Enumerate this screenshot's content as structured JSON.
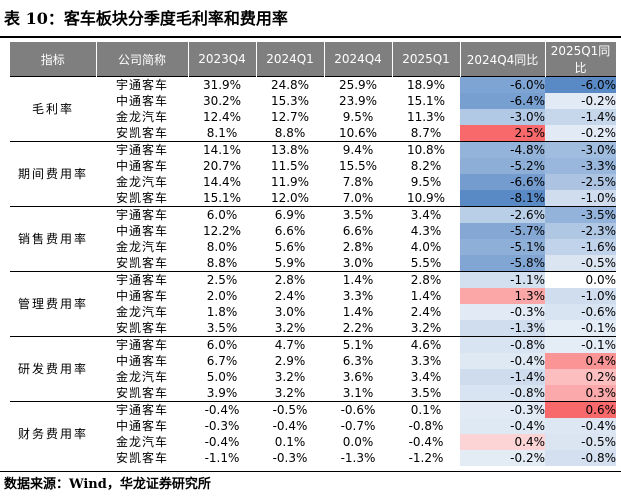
{
  "title": "表 10：客车板块分季度毛利率和费用率",
  "headers": [
    "指标",
    "公司简称",
    "2023Q4",
    "2024Q1",
    "2024Q4",
    "2025Q1",
    "2024Q4同比",
    "2025Q1同比"
  ],
  "groups": [
    {
      "label": "毛利率",
      "rows": [
        {
          "company": "宇通客车",
          "values": [
            "31.9%",
            "24.8%",
            "25.9%",
            "18.9%"
          ],
          "yoy": [
            "-6.0%",
            "-6.0%"
          ]
        },
        {
          "company": "中通客车",
          "values": [
            "30.2%",
            "15.3%",
            "23.9%",
            "15.1%"
          ],
          "yoy": [
            "-6.4%",
            "-0.2%"
          ]
        },
        {
          "company": "金龙汽车",
          "values": [
            "12.4%",
            "12.7%",
            "9.5%",
            "11.3%"
          ],
          "yoy": [
            "-3.0%",
            "-1.4%"
          ]
        },
        {
          "company": "安凯客车",
          "values": [
            "8.1%",
            "8.8%",
            "10.6%",
            "8.7%"
          ],
          "yoy": [
            "2.5%",
            "-0.2%"
          ]
        }
      ]
    },
    {
      "label": "期间费用率",
      "rows": [
        {
          "company": "宇通客车",
          "values": [
            "14.1%",
            "13.8%",
            "9.4%",
            "10.8%"
          ],
          "yoy": [
            "-4.8%",
            "-3.0%"
          ]
        },
        {
          "company": "中通客车",
          "values": [
            "20.7%",
            "11.5%",
            "15.5%",
            "8.2%"
          ],
          "yoy": [
            "-5.2%",
            "-3.3%"
          ]
        },
        {
          "company": "金龙汽车",
          "values": [
            "14.4%",
            "11.9%",
            "7.8%",
            "9.5%"
          ],
          "yoy": [
            "-6.6%",
            "-2.5%"
          ]
        },
        {
          "company": "安凯客车",
          "values": [
            "15.1%",
            "12.0%",
            "7.0%",
            "10.9%"
          ],
          "yoy": [
            "-8.1%",
            "-1.0%"
          ]
        }
      ]
    },
    {
      "label": "销售费用率",
      "rows": [
        {
          "company": "宇通客车",
          "values": [
            "6.0%",
            "6.9%",
            "3.5%",
            "3.4%"
          ],
          "yoy": [
            "-2.6%",
            "-3.5%"
          ]
        },
        {
          "company": "中通客车",
          "values": [
            "12.2%",
            "6.6%",
            "6.6%",
            "4.3%"
          ],
          "yoy": [
            "-5.7%",
            "-2.3%"
          ]
        },
        {
          "company": "金龙汽车",
          "values": [
            "8.0%",
            "5.6%",
            "2.8%",
            "4.0%"
          ],
          "yoy": [
            "-5.1%",
            "-1.6%"
          ]
        },
        {
          "company": "安凯客车",
          "values": [
            "8.8%",
            "5.9%",
            "3.0%",
            "5.5%"
          ],
          "yoy": [
            "-5.8%",
            "-0.5%"
          ]
        }
      ]
    },
    {
      "label": "管理费用率",
      "rows": [
        {
          "company": "宇通客车",
          "values": [
            "2.5%",
            "2.8%",
            "1.4%",
            "2.8%"
          ],
          "yoy": [
            "-1.1%",
            "0.0%"
          ]
        },
        {
          "company": "中通客车",
          "values": [
            "2.0%",
            "2.4%",
            "3.3%",
            "1.4%"
          ],
          "yoy": [
            "1.3%",
            "-1.0%"
          ]
        },
        {
          "company": "金龙汽车",
          "values": [
            "1.8%",
            "3.0%",
            "1.4%",
            "2.4%"
          ],
          "yoy": [
            "-0.3%",
            "-0.6%"
          ]
        },
        {
          "company": "安凯客车",
          "values": [
            "3.5%",
            "3.2%",
            "2.2%",
            "3.2%"
          ],
          "yoy": [
            "-1.3%",
            "-0.1%"
          ]
        }
      ]
    },
    {
      "label": "研发费用率",
      "rows": [
        {
          "company": "宇通客车",
          "values": [
            "6.0%",
            "4.7%",
            "5.1%",
            "4.6%"
          ],
          "yoy": [
            "-0.8%",
            "-0.1%"
          ]
        },
        {
          "company": "中通客车",
          "values": [
            "6.7%",
            "2.9%",
            "6.3%",
            "3.3%"
          ],
          "yoy": [
            "-0.4%",
            "0.4%"
          ]
        },
        {
          "company": "金龙汽车",
          "values": [
            "5.0%",
            "3.2%",
            "3.6%",
            "3.4%"
          ],
          "yoy": [
            "-1.4%",
            "0.2%"
          ]
        },
        {
          "company": "安凯客车",
          "values": [
            "3.9%",
            "3.2%",
            "3.1%",
            "3.5%"
          ],
          "yoy": [
            "-0.8%",
            "0.3%"
          ]
        }
      ]
    },
    {
      "label": "财务费用率",
      "rows": [
        {
          "company": "宇通客车",
          "values": [
            "-0.4%",
            "-0.5%",
            "-0.6%",
            "0.1%"
          ],
          "yoy": [
            "-0.3%",
            "0.6%"
          ]
        },
        {
          "company": "中通客车",
          "values": [
            "-0.3%",
            "-0.4%",
            "-0.7%",
            "-0.8%"
          ],
          "yoy": [
            "-0.4%",
            "-0.4%"
          ]
        },
        {
          "company": "金龙汽车",
          "values": [
            "-0.4%",
            "0.1%",
            "0.0%",
            "-0.4%"
          ],
          "yoy": [
            "0.4%",
            "-0.5%"
          ]
        },
        {
          "company": "安凯客车",
          "values": [
            "-1.1%",
            "-0.3%",
            "-1.3%",
            "-1.2%"
          ],
          "yoy": [
            "-0.2%",
            "-0.8%"
          ]
        }
      ]
    }
  ],
  "source": "数据来源：Wind，华龙证券研究所",
  "colors": {
    "header_bg": "#7f7f7f",
    "positive": "#f8696b",
    "negative": "#5a8ac6"
  }
}
